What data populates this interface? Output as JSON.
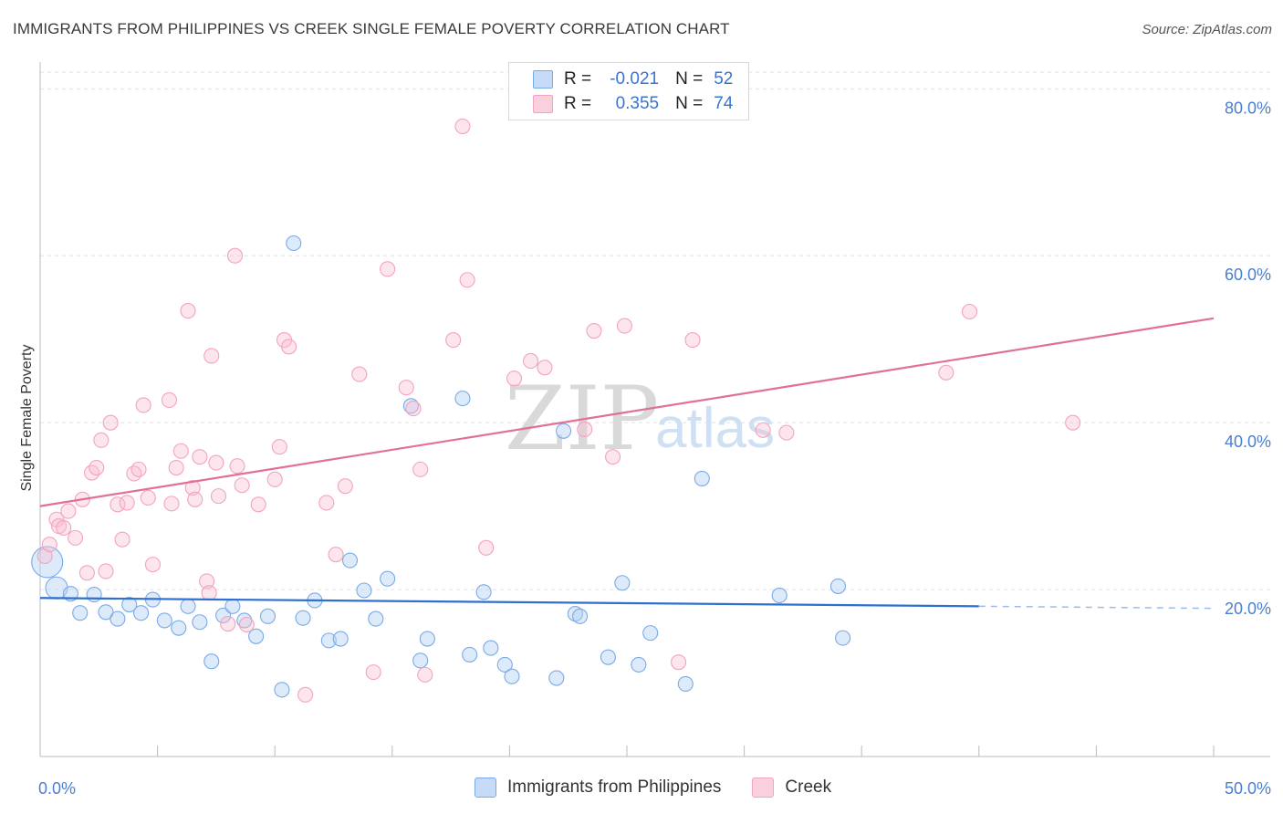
{
  "title": "IMMIGRANTS FROM PHILIPPINES VS CREEK SINGLE FEMALE POVERTY CORRELATION CHART",
  "source": "Source: ZipAtlas.com",
  "watermark": {
    "zip": "ZIP",
    "atlas": "atlas"
  },
  "legend": {
    "rows": [
      {
        "r_label": "R =",
        "r_value": "-0.021",
        "n_label": "N =",
        "n_value": "52",
        "color": "#a9c8f2"
      },
      {
        "r_label": "R =",
        "r_value": "0.355",
        "n_label": "N =",
        "n_value": "74",
        "color": "#f6b6cc"
      }
    ]
  },
  "bottom_legend": {
    "items": [
      {
        "label": "Immigrants from Philippines",
        "color": "#a9c8f2"
      },
      {
        "label": "Creek",
        "color": "#f6b6cc"
      }
    ]
  },
  "chart_data": {
    "type": "scatter",
    "title": "IMMIGRANTS FROM PHILIPPINES VS CREEK SINGLE FEMALE POVERTY CORRELATION CHART",
    "xlabel": "",
    "ylabel": "Single Female Poverty",
    "xlim": [
      0,
      50
    ],
    "ylim": [
      0,
      82
    ],
    "x_tick_labels": [
      "0.0%",
      "50.0%"
    ],
    "y_ticks": [
      20,
      40,
      60,
      80
    ],
    "y_tick_labels": [
      "20.0%",
      "40.0%",
      "60.0%",
      "80.0%"
    ],
    "series": [
      {
        "name": "Immigrants from Philippines",
        "color": "#7aaae6",
        "line_color": "#2f6fd0",
        "trend": {
          "x0": 0,
          "y0": 19.0,
          "x1": 40,
          "y1": 18.0,
          "dashed_to": 50
        },
        "points": [
          [
            0.3,
            23.3
          ],
          [
            0.7,
            20.2
          ],
          [
            1.3,
            19.5
          ],
          [
            1.7,
            17.2
          ],
          [
            2.3,
            19.4
          ],
          [
            2.8,
            17.3
          ],
          [
            3.3,
            16.5
          ],
          [
            3.8,
            18.2
          ],
          [
            4.3,
            17.2
          ],
          [
            4.8,
            18.8
          ],
          [
            5.3,
            16.3
          ],
          [
            5.9,
            15.4
          ],
          [
            6.3,
            18.0
          ],
          [
            6.8,
            16.1
          ],
          [
            7.3,
            11.4
          ],
          [
            7.8,
            16.9
          ],
          [
            8.2,
            18.0
          ],
          [
            8.7,
            16.3
          ],
          [
            9.2,
            14.4
          ],
          [
            9.7,
            16.8
          ],
          [
            10.3,
            8.0
          ],
          [
            10.8,
            61.5
          ],
          [
            11.2,
            16.6
          ],
          [
            11.7,
            18.7
          ],
          [
            12.3,
            13.9
          ],
          [
            12.8,
            14.1
          ],
          [
            13.2,
            23.5
          ],
          [
            13.8,
            19.9
          ],
          [
            14.3,
            16.5
          ],
          [
            14.8,
            21.3
          ],
          [
            15.8,
            42.0
          ],
          [
            16.2,
            11.5
          ],
          [
            16.5,
            14.1
          ],
          [
            18.0,
            42.9
          ],
          [
            18.3,
            12.2
          ],
          [
            18.9,
            19.7
          ],
          [
            19.2,
            13.0
          ],
          [
            19.8,
            11.0
          ],
          [
            20.1,
            9.6
          ],
          [
            22.0,
            9.4
          ],
          [
            22.3,
            39.0
          ],
          [
            22.8,
            17.1
          ],
          [
            23.0,
            16.8
          ],
          [
            24.2,
            11.9
          ],
          [
            24.8,
            20.8
          ],
          [
            25.5,
            11.0
          ],
          [
            26.0,
            14.8
          ],
          [
            27.5,
            8.7
          ],
          [
            28.2,
            33.3
          ],
          [
            31.5,
            19.3
          ],
          [
            34.0,
            20.4
          ],
          [
            34.2,
            14.2
          ]
        ],
        "sizes": {
          "0": 17,
          "1": 12
        }
      },
      {
        "name": "Creek",
        "color": "#f3a3bf",
        "line_color": "#e07099",
        "trend": {
          "x0": 0,
          "y0": 30.0,
          "x1": 50,
          "y1": 52.5
        },
        "points": [
          [
            0.2,
            24.0
          ],
          [
            0.4,
            25.4
          ],
          [
            0.7,
            28.4
          ],
          [
            0.8,
            27.6
          ],
          [
            1.0,
            27.4
          ],
          [
            1.2,
            29.4
          ],
          [
            1.5,
            26.2
          ],
          [
            1.8,
            30.8
          ],
          [
            2.0,
            22.0
          ],
          [
            2.2,
            34.0
          ],
          [
            2.4,
            34.6
          ],
          [
            2.6,
            37.9
          ],
          [
            2.8,
            22.2
          ],
          [
            3.0,
            40.0
          ],
          [
            3.3,
            30.2
          ],
          [
            3.5,
            26.0
          ],
          [
            3.7,
            30.4
          ],
          [
            4.0,
            33.9
          ],
          [
            4.2,
            34.4
          ],
          [
            4.4,
            42.1
          ],
          [
            4.6,
            31.0
          ],
          [
            4.8,
            23.0
          ],
          [
            5.5,
            42.7
          ],
          [
            5.6,
            30.3
          ],
          [
            5.8,
            34.6
          ],
          [
            6.0,
            36.6
          ],
          [
            6.3,
            53.4
          ],
          [
            6.5,
            32.2
          ],
          [
            6.6,
            30.8
          ],
          [
            6.8,
            35.9
          ],
          [
            7.1,
            21.0
          ],
          [
            7.2,
            19.6
          ],
          [
            7.3,
            48.0
          ],
          [
            7.5,
            35.2
          ],
          [
            7.6,
            31.2
          ],
          [
            8.0,
            15.9
          ],
          [
            8.3,
            60.0
          ],
          [
            8.4,
            34.8
          ],
          [
            8.6,
            32.5
          ],
          [
            8.8,
            15.8
          ],
          [
            9.3,
            30.2
          ],
          [
            10.0,
            33.2
          ],
          [
            10.2,
            37.1
          ],
          [
            10.4,
            49.9
          ],
          [
            10.6,
            49.1
          ],
          [
            11.3,
            7.4
          ],
          [
            12.2,
            30.4
          ],
          [
            12.6,
            24.2
          ],
          [
            13.0,
            32.4
          ],
          [
            13.6,
            45.8
          ],
          [
            14.2,
            10.1
          ],
          [
            14.8,
            58.4
          ],
          [
            15.6,
            44.2
          ],
          [
            15.9,
            41.7
          ],
          [
            16.2,
            34.4
          ],
          [
            16.4,
            9.8
          ],
          [
            18.0,
            75.5
          ],
          [
            17.6,
            49.9
          ],
          [
            18.2,
            57.1
          ],
          [
            19.0,
            25.0
          ],
          [
            20.2,
            45.3
          ],
          [
            20.9,
            47.4
          ],
          [
            21.5,
            46.6
          ],
          [
            23.2,
            39.2
          ],
          [
            23.6,
            51.0
          ],
          [
            24.4,
            35.9
          ],
          [
            24.9,
            51.6
          ],
          [
            27.2,
            11.3
          ],
          [
            27.8,
            49.9
          ],
          [
            30.8,
            39.1
          ],
          [
            31.8,
            38.8
          ],
          [
            38.6,
            46.0
          ],
          [
            39.6,
            53.3
          ],
          [
            44.0,
            40.0
          ]
        ]
      }
    ]
  }
}
